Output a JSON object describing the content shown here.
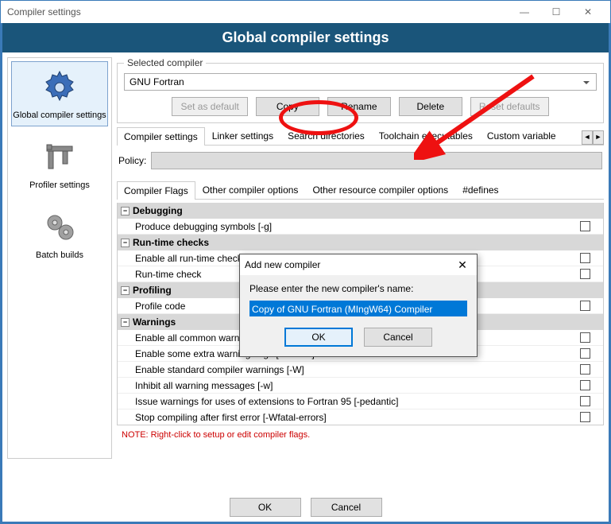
{
  "window": {
    "title": "Compiler settings"
  },
  "banner": "Global compiler settings",
  "sidebar": {
    "items": [
      {
        "label": "Global compiler settings",
        "icon": "gear-blue",
        "selected": true
      },
      {
        "label": "Profiler settings",
        "icon": "caliper"
      },
      {
        "label": "Batch builds",
        "icon": "gears-grey"
      }
    ]
  },
  "selected_compiler": {
    "legend": "Selected compiler",
    "value": "GNU Fortran",
    "buttons": {
      "set_default": "Set as default",
      "copy": "Copy",
      "rename": "Rename",
      "delete": "Delete",
      "reset": "Reset defaults"
    }
  },
  "tabs": {
    "items": [
      "Compiler settings",
      "Linker settings",
      "Search directories",
      "Toolchain executables",
      "Custom variable"
    ],
    "active_index": 0
  },
  "policy": {
    "label": "Policy:"
  },
  "subtabs": {
    "items": [
      "Compiler Flags",
      "Other compiler options",
      "Other resource compiler options",
      "#defines"
    ],
    "active_index": 0
  },
  "flag_tree": [
    {
      "type": "cat",
      "label": "Debugging"
    },
    {
      "type": "flag",
      "label": "Produce debugging symbols  [-g]"
    },
    {
      "type": "cat",
      "label": "Run-time checks"
    },
    {
      "type": "flag",
      "label": "Enable all run-time checks"
    },
    {
      "type": "flag",
      "label": "Run-time check"
    },
    {
      "type": "cat",
      "label": "Profiling"
    },
    {
      "type": "flag",
      "label": "Profile code"
    },
    {
      "type": "cat",
      "label": "Warnings"
    },
    {
      "type": "flag",
      "label": "Enable all common warnings"
    },
    {
      "type": "flag",
      "label": "Enable some extra warning flags  [-Wextra]"
    },
    {
      "type": "flag",
      "label": "Enable standard compiler warnings  [-W]"
    },
    {
      "type": "flag",
      "label": "Inhibit all warning messages  [-w]"
    },
    {
      "type": "flag",
      "label": "Issue warnings for uses of extensions to Fortran 95  [-pedantic]"
    },
    {
      "type": "flag",
      "label": "Stop compiling after first error  [-Wfatal-errors]"
    }
  ],
  "note": "NOTE: Right-click to setup or edit compiler flags.",
  "footer": {
    "ok": "OK",
    "cancel": "Cancel"
  },
  "modal": {
    "title": "Add new compiler",
    "prompt": "Please enter the new compiler's name:",
    "value": "Copy of GNU Fortran (MIngW64) Compiler",
    "ok": "OK",
    "cancel": "Cancel"
  },
  "colors": {
    "banner_bg": "#1a557a",
    "accent": "#0078d7",
    "annotation": "#e11"
  }
}
